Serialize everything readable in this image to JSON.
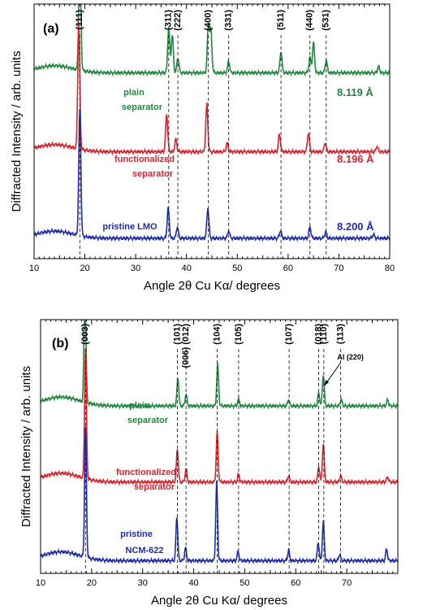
{
  "chart_data": [
    {
      "type": "line",
      "panel": "(a)",
      "xlabel": "Angle 2θ Cu Kα/ degrees",
      "ylabel": "Diffracted Intensity / arb. units",
      "xlim": [
        10,
        80
      ],
      "xticks": [
        10,
        20,
        30,
        40,
        50,
        60,
        70,
        80
      ],
      "reflections": [
        {
          "label": "(111)",
          "x": 19.0
        },
        {
          "label": "(311)",
          "x": 36.5
        },
        {
          "label": "(222)",
          "x": 38.3
        },
        {
          "label": "(400)",
          "x": 44.3
        },
        {
          "label": "(331)",
          "x": 48.3
        },
        {
          "label": "(511)",
          "x": 58.6
        },
        {
          "label": "(440)",
          "x": 64.3
        },
        {
          "label": "(531)",
          "x": 67.5
        }
      ],
      "series": [
        {
          "name": "plain separator",
          "label_lines": [
            "plain",
            "separator"
          ],
          "lattice": "8.119 Å",
          "color": "#1e8a3e",
          "baseline": 0.73,
          "peaks": [
            [
              19.0,
              1.0
            ],
            [
              36.5,
              0.36
            ],
            [
              37.2,
              0.3
            ],
            [
              38.3,
              0.12
            ],
            [
              44.3,
              0.38
            ],
            [
              44.8,
              0.34
            ],
            [
              48.3,
              0.09
            ],
            [
              58.6,
              0.17
            ],
            [
              64.3,
              0.12
            ],
            [
              65.0,
              0.24
            ],
            [
              67.5,
              0.1
            ],
            [
              77.8,
              0.05
            ]
          ]
        },
        {
          "name": "functionalized separator",
          "label_lines": [
            "functionalized",
            "separator"
          ],
          "lattice": "8.196 Å",
          "color": "#e0202b",
          "baseline": 0.42,
          "peaks": [
            [
              18.8,
              1.0
            ],
            [
              36.1,
              0.3
            ],
            [
              37.9,
              0.1
            ],
            [
              44.0,
              0.38
            ],
            [
              48.0,
              0.07
            ],
            [
              58.3,
              0.14
            ],
            [
              64.0,
              0.15
            ],
            [
              67.3,
              0.07
            ],
            [
              77.5,
              0.04
            ]
          ]
        },
        {
          "name": "pristine LMO",
          "label_lines": [
            "pristine LMO"
          ],
          "lattice": "8.200 Å",
          "color": "#1f2bb3",
          "baseline": 0.08,
          "peaks": [
            [
              19.0,
              1.0
            ],
            [
              36.4,
              0.24
            ],
            [
              38.2,
              0.09
            ],
            [
              44.2,
              0.24
            ],
            [
              48.3,
              0.06
            ],
            [
              58.5,
              0.06
            ],
            [
              64.3,
              0.09
            ],
            [
              67.4,
              0.05
            ],
            [
              76.8,
              0.03
            ]
          ]
        }
      ]
    },
    {
      "type": "line",
      "panel": "(b)",
      "xlabel": "Angle 2θ Cu Kα/ degrees",
      "ylabel": "Diffracted Intensity / arb. units",
      "xlim": [
        10,
        80
      ],
      "xticks": [
        10,
        20,
        30,
        40,
        50,
        60,
        70
      ],
      "reflections": [
        {
          "label": "(003)",
          "x": 18.8
        },
        {
          "label": "(101)",
          "x": 36.8
        },
        {
          "label": "(006) (012)",
          "x": 38.5
        },
        {
          "label": "(104)",
          "x": 44.6
        },
        {
          "label": "(105)",
          "x": 48.8
        },
        {
          "label": "(107)",
          "x": 58.7
        },
        {
          "label": "(018)",
          "x": 64.5
        },
        {
          "label": "(110)",
          "x": 65.5
        },
        {
          "label": "(113)",
          "x": 68.8
        }
      ],
      "annotation": {
        "text": "Al (220)",
        "x": 65.3
      },
      "series": [
        {
          "name": "plain separator",
          "label_lines": [
            "plain",
            "separator"
          ],
          "color": "#1e8a3e",
          "baseline": 0.66,
          "peaks": [
            [
              18.7,
              1.0
            ],
            [
              36.9,
              0.22
            ],
            [
              38.5,
              0.09
            ],
            [
              44.7,
              0.32
            ],
            [
              48.8,
              0.05
            ],
            [
              58.6,
              0.05
            ],
            [
              64.5,
              0.1
            ],
            [
              65.4,
              0.24
            ],
            [
              68.9,
              0.05
            ],
            [
              78.0,
              0.05
            ]
          ]
        },
        {
          "name": "functionalized separator",
          "label_lines": [
            "functionalized",
            "separator"
          ],
          "color": "#e0202b",
          "baseline": 0.36,
          "peaks": [
            [
              18.8,
              1.0
            ],
            [
              36.8,
              0.26
            ],
            [
              38.5,
              0.1
            ],
            [
              44.6,
              0.38
            ],
            [
              48.8,
              0.06
            ],
            [
              58.6,
              0.05
            ],
            [
              64.5,
              0.12
            ],
            [
              65.4,
              0.3
            ],
            [
              68.8,
              0.05
            ],
            [
              78.0,
              0.04
            ]
          ]
        },
        {
          "name": "pristine NCM-622",
          "label_lines": [
            "pristine",
            "NCM-622"
          ],
          "color": "#1f2bb3",
          "baseline": 0.05,
          "peaks": [
            [
              18.8,
              1.0
            ],
            [
              36.7,
              0.34
            ],
            [
              38.4,
              0.1
            ],
            [
              44.5,
              0.6
            ],
            [
              48.7,
              0.07
            ],
            [
              58.6,
              0.08
            ],
            [
              64.4,
              0.14
            ],
            [
              65.4,
              0.3
            ],
            [
              68.6,
              0.05
            ],
            [
              77.8,
              0.09
            ]
          ]
        }
      ]
    }
  ]
}
